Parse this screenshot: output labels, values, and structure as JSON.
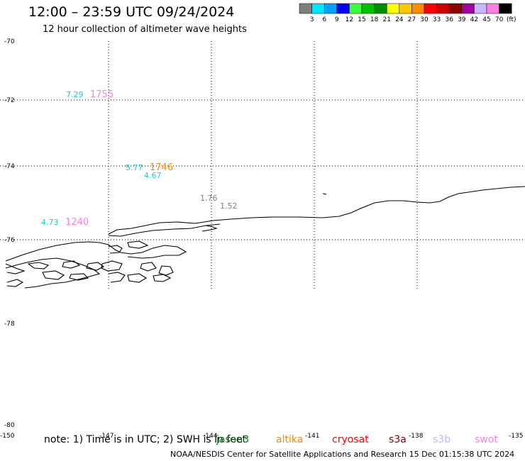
{
  "header": {
    "title": "12:00 – 23:59 UTC 09/24/2024",
    "subtitle": "12 hour collection of altimeter wave heights"
  },
  "colorbar": {
    "unit": "(ft)",
    "colors": [
      "#7f7f7f",
      "#00e5ff",
      "#00a0ff",
      "#0000ff",
      "#3cff3c",
      "#00c000",
      "#008c00",
      "#ffff00",
      "#ffc800",
      "#ff8c00",
      "#ff0000",
      "#c80000",
      "#8c0000",
      "#a000a0",
      "#c8b4ff",
      "#ff80e0",
      "#000000"
    ],
    "labels": [
      "3",
      "6",
      "9",
      "12",
      "15",
      "18",
      "21",
      "24",
      "27",
      "30",
      "33",
      "36",
      "39",
      "42",
      "45",
      "70"
    ]
  },
  "axes": {
    "lat_labels": [
      "-70",
      "-72",
      "-74",
      "-76",
      "-78",
      "-80"
    ],
    "lon_labels": [
      "-150",
      "-147",
      "-144",
      "-141",
      "-138",
      "-135"
    ]
  },
  "observations": [
    {
      "text": "7.29",
      "color": "#22c8d8"
    },
    {
      "text": "1755",
      "color": "#ff80e0"
    },
    {
      "text": "5.77",
      "color": "#22c8d8"
    },
    {
      "text": "1746",
      "color": "#ff8c00"
    },
    {
      "text": "4.67",
      "color": "#22c8d8"
    },
    {
      "text": "1.76",
      "color": "#808080"
    },
    {
      "text": "1.52",
      "color": "#808080"
    },
    {
      "text": "4.73",
      "color": "#22c8d8"
    },
    {
      "text": "1240",
      "color": "#ff80e0"
    }
  ],
  "note": "note:  1) Time is in UTC; 2) SWH is in feet",
  "satellites": [
    {
      "name": "jason3",
      "color": "#008000"
    },
    {
      "name": "altika",
      "color": "#ff8c00"
    },
    {
      "name": "cryosat",
      "color": "#ff0000"
    },
    {
      "name": "s3a",
      "color": "#8c0000"
    },
    {
      "name": "s3b",
      "color": "#c8b4ff"
    },
    {
      "name": "swot",
      "color": "#ff80e0"
    }
  ],
  "footer": "NOAA/NESDIS Center for Satellite Applications and Research    15 Dec 01:15:38 UTC 2024"
}
